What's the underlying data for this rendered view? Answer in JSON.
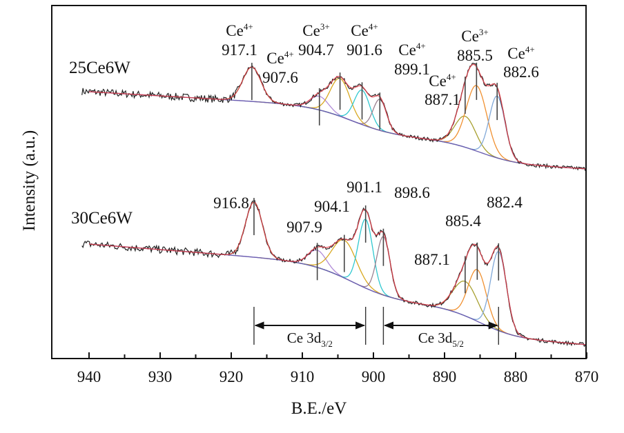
{
  "chart_data": {
    "type": "line",
    "xlabel": "B.E./eV",
    "ylabel": "Intensity (a.u.)",
    "xlim": [
      940,
      870
    ],
    "x_reversed": true,
    "x_ticks": [
      "940",
      "930",
      "920",
      "910",
      "900",
      "890",
      "880",
      "870"
    ],
    "y_ticks": [],
    "grid": false,
    "legend": "none",
    "colors": {
      "data": "#222222",
      "envelope": "#e0404a",
      "background": "#6a5fb0",
      "c917": "#6a9a30",
      "c907": "#b08ad8",
      "c904": "#d8a820",
      "c901": "#30c8d0",
      "c899": "#9a8090",
      "c887": "#a8a030",
      "c885": "#f09030",
      "c882": "#80a8d8"
    },
    "series": [
      {
        "name": "25Ce6W",
        "peaks": [
          {
            "ion": "Ce",
            "charge": "4+",
            "be": "917.1",
            "amp": 10,
            "fwhm": 3.0,
            "color": "c917"
          },
          {
            "ion": "Ce",
            "charge": "4+",
            "be": "907.6",
            "amp": 4,
            "fwhm": 3.0,
            "color": "c907"
          },
          {
            "ion": "Ce",
            "charge": "3+",
            "be": "904.7",
            "amp": 11,
            "fwhm": 3.2,
            "color": "c904"
          },
          {
            "ion": "Ce",
            "charge": "4+",
            "be": "901.6",
            "amp": 10,
            "fwhm": 2.6,
            "color": "c901"
          },
          {
            "ion": "Ce",
            "charge": "4+",
            "be": "899.1",
            "amp": 9,
            "fwhm": 2.2,
            "color": "c899"
          },
          {
            "ion": "Ce",
            "charge": "4+",
            "be": "887.1",
            "amp": 9,
            "fwhm": 3.4,
            "color": "c887"
          },
          {
            "ion": "Ce",
            "charge": "3+",
            "be": "885.5",
            "amp": 19,
            "fwhm": 3.4,
            "color": "c885"
          },
          {
            "ion": "Ce",
            "charge": "4+",
            "be": "882.6",
            "amp": 18,
            "fwhm": 2.6,
            "color": "c882"
          }
        ]
      },
      {
        "name": "30Ce6W",
        "peaks": [
          {
            "be": "916.8",
            "amp": 16,
            "fwhm": 2.8,
            "color": "c917"
          },
          {
            "be": "907.9",
            "amp": 5,
            "fwhm": 3.0,
            "color": "c907"
          },
          {
            "be": "904.1",
            "amp": 11,
            "fwhm": 4.0,
            "color": "c904"
          },
          {
            "be": "901.1",
            "amp": 20,
            "fwhm": 2.4,
            "color": "c901"
          },
          {
            "be": "898.6",
            "amp": 17,
            "fwhm": 2.2,
            "color": "c899"
          },
          {
            "be": "887.1",
            "amp": 10,
            "fwhm": 4.0,
            "color": "c887"
          },
          {
            "be": "885.4",
            "amp": 15,
            "fwhm": 3.0,
            "color": "c885"
          },
          {
            "be": "882.4",
            "amp": 23,
            "fwhm": 2.6,
            "color": "c882"
          }
        ]
      }
    ],
    "annotations": [
      {
        "text": "Ce 3d",
        "sub": "3/2",
        "from": 916.8,
        "to": 901.1
      },
      {
        "text": "Ce 3d",
        "sub": "5/2",
        "from": 898.6,
        "to": 882.4
      }
    ]
  }
}
